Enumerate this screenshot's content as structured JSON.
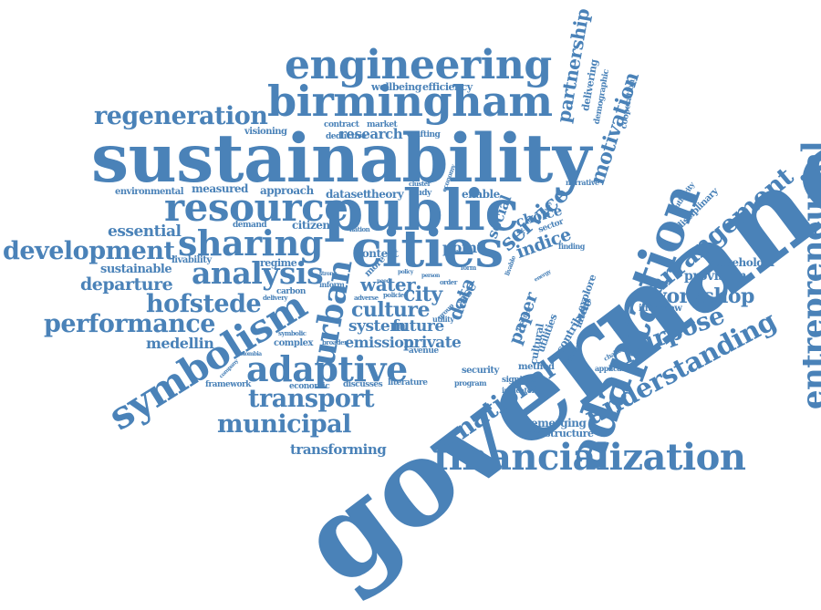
{
  "colors": {
    "word": "#4a82b8",
    "background": "#ffffff"
  },
  "words": [
    "governance",
    "sustainability",
    "birmingham",
    "engineering",
    "public",
    "cities",
    "adaptation",
    "resource",
    "financialization",
    "adaptive",
    "symbolism",
    "urban",
    "sharing",
    "analysis",
    "entrepreneurial",
    "understanding",
    "arrangement",
    "purpose",
    "regeneration",
    "development",
    "performance",
    "hofstede",
    "transport",
    "municipal",
    "national",
    "service",
    "motivation",
    "partnership",
    "workshop",
    "culture",
    "city",
    "departure",
    "essential",
    "sustainable",
    "medellin",
    "transforming",
    "emission",
    "private",
    "future",
    "system",
    "research",
    "water",
    "indice",
    "paper",
    "data",
    "point",
    "context",
    "citizen",
    "regime",
    "livability",
    "dataset",
    "theory",
    "approach",
    "measured",
    "environmental",
    "enable",
    "social",
    "choice",
    "delivering",
    "demographic",
    "cooperation",
    "wellbeing",
    "efficiency",
    "visioning",
    "contract",
    "market",
    "deductive",
    "crafting",
    "stakeholder",
    "provision",
    "interview",
    "disciplinary",
    "authority",
    "narrative",
    "emerging",
    "infrastructure",
    "security",
    "significant",
    "indicator",
    "method",
    "literature",
    "program",
    "discusses",
    "economic",
    "framework",
    "complex",
    "symbolic",
    "carbon",
    "delivery",
    "avenue",
    "utility",
    "order",
    "latent",
    "contribute",
    "explore",
    "utilities",
    "cultural",
    "application",
    "challenge",
    "different",
    "finding",
    "sector",
    "case",
    "study",
    "cluster",
    "economy",
    "nation",
    "broader",
    "inform",
    "adverse",
    "policies",
    "more",
    "form",
    "strong",
    "person",
    "group",
    "colombia",
    "company",
    "demand",
    "livable",
    "energy",
    "practice",
    "uk",
    "society",
    "wake",
    "policy",
    "need"
  ]
}
